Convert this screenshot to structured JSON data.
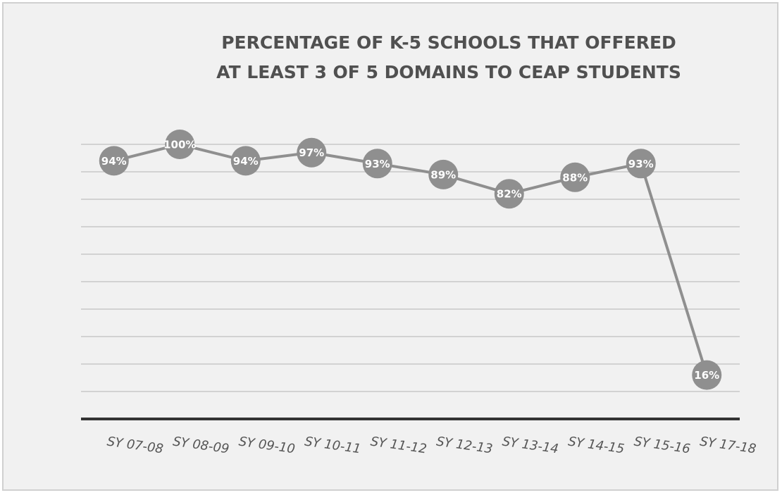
{
  "chart_data": {
    "type": "line",
    "title": [
      "PERCENTAGE OF K-5 SCHOOLS THAT OFFERED",
      "AT LEAST 3 OF 5 DOMAINS TO CEAP STUDENTS"
    ],
    "categories": [
      "SY 07-08",
      "SY 08-09",
      "SY 09-10",
      "SY 10-11",
      "SY 11-12",
      "SY 12-13",
      "SY 13-14",
      "SY 14-15",
      "SY 15-16",
      "SY 17-18"
    ],
    "values": [
      94,
      100,
      94,
      97,
      93,
      89,
      82,
      88,
      93,
      16
    ],
    "value_labels": [
      "94%",
      "100%",
      "94%",
      "97%",
      "93%",
      "89%",
      "82%",
      "88%",
      "93%",
      "16%"
    ],
    "color": "#8f8f8f",
    "ylim": [
      0,
      100
    ],
    "yticks": [
      0,
      10,
      20,
      30,
      40,
      50,
      60,
      70,
      80,
      90,
      100
    ],
    "grid": true
  }
}
